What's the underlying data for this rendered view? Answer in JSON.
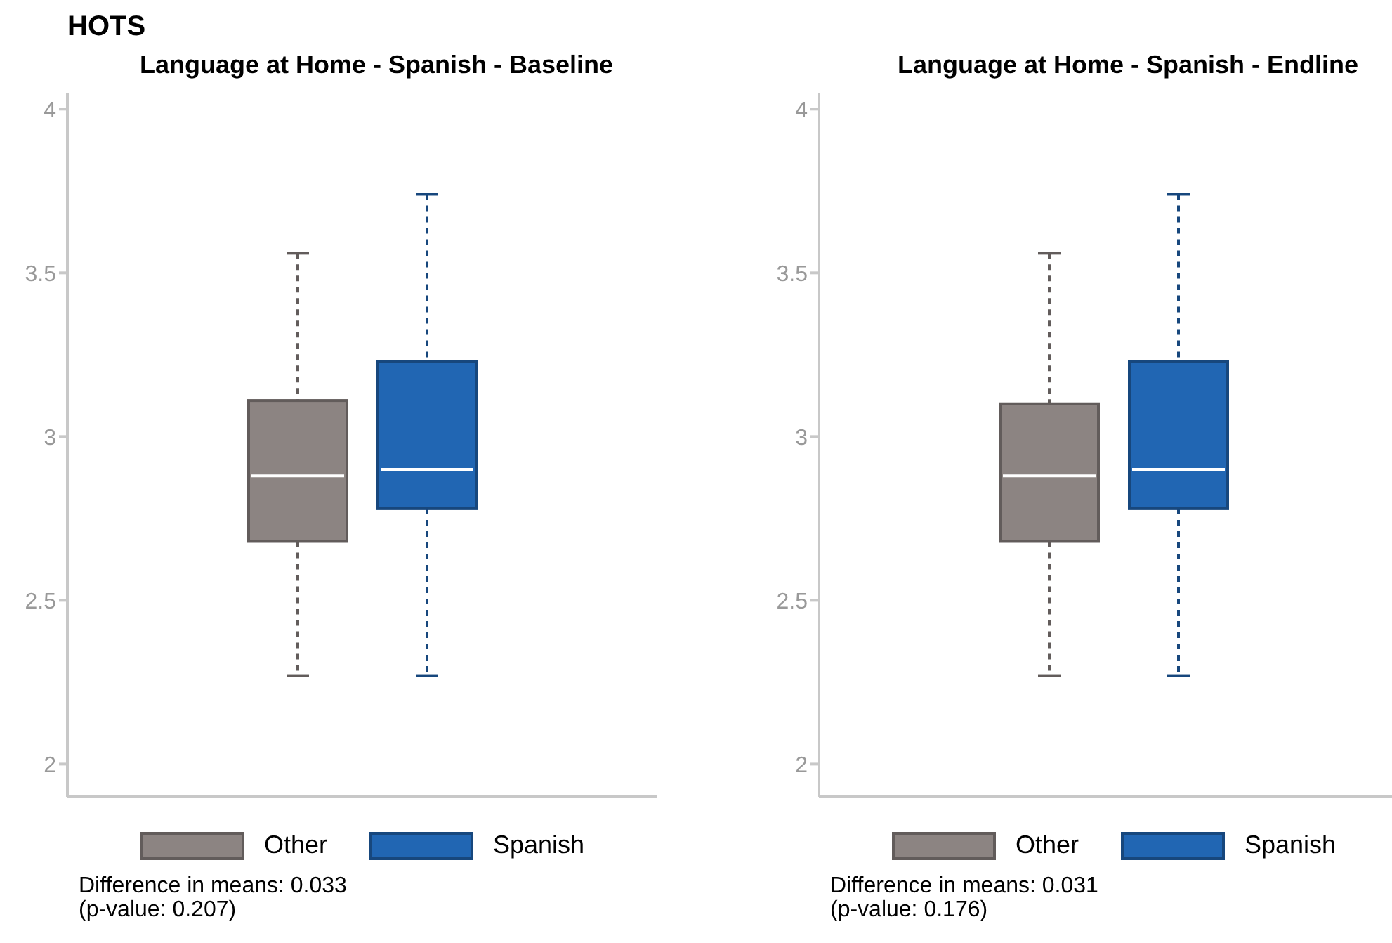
{
  "chart_data": [
    {
      "type": "box",
      "title": "HOTS",
      "subtitle": "Language at Home - Spanish - Baseline",
      "categories": [
        null
      ],
      "ylim": [
        1.9,
        4.05
      ],
      "yticks": [
        2,
        2.5,
        3,
        3.5,
        4
      ],
      "grid": false,
      "legend": "bottom",
      "line_style": "dashed",
      "series": [
        {
          "name": "Other",
          "color": "#8c8482",
          "boxes": [
            {
              "low": 2.27,
              "q1": 2.68,
              "median": 2.88,
              "q3": 3.11,
              "high": 3.56
            }
          ]
        },
        {
          "name": "Spanish",
          "color": "#2166b3",
          "boxes": [
            {
              "low": 2.27,
              "q1": 2.78,
              "median": 2.9,
              "q3": 3.23,
              "high": 3.74
            }
          ]
        }
      ],
      "annotations": [
        "Difference in means: 0.033",
        "(p-value: 0.207)"
      ]
    },
    {
      "type": "box",
      "subtitle": "Language at Home - Spanish - Endline",
      "categories": [
        null
      ],
      "ylim": [
        1.9,
        4.05
      ],
      "yticks": [
        2,
        2.5,
        3,
        3.5,
        4
      ],
      "grid": false,
      "legend": "bottom",
      "line_style": "dashed",
      "series": [
        {
          "name": "Other",
          "color": "#8c8482",
          "boxes": [
            {
              "low": 2.27,
              "q1": 2.68,
              "median": 2.88,
              "q3": 3.1,
              "high": 3.56
            }
          ]
        },
        {
          "name": "Spanish",
          "color": "#2166b3",
          "boxes": [
            {
              "low": 2.27,
              "q1": 2.78,
              "median": 2.9,
              "q3": 3.23,
              "high": 3.74
            }
          ]
        }
      ],
      "annotations": [
        "Difference in means: 0.031",
        "(p-value: 0.176)"
      ]
    }
  ]
}
